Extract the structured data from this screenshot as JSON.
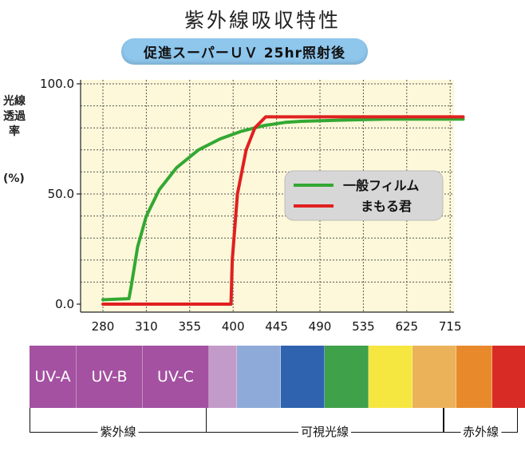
{
  "title": "紫外線吸収特性",
  "subtitle": "促進スーパーＵＶ 25hr照射後",
  "chart_data": {
    "type": "line",
    "title": "紫外線吸収特性",
    "subtitle": "促進スーパーＵＶ 25hr照射後",
    "ylabel": "光線透過率",
    "ylabel_unit": "(%)",
    "xlabel": "",
    "categories": [
      "280",
      "310",
      "355",
      "400",
      "445",
      "490",
      "535",
      "625",
      "715"
    ],
    "y_ticks": [
      100.0,
      50.0,
      0.0
    ],
    "y_tick_labels": [
      "100.0",
      "50.0",
      "0.0"
    ],
    "ylim": [
      0,
      100
    ],
    "grid": true,
    "legend_position": "right-middle",
    "series": [
      {
        "name": "一般フィルム",
        "color": "#33a833",
        "points": [
          [
            0,
            2
          ],
          [
            0.6,
            2.5
          ],
          [
            0.65,
            8
          ],
          [
            0.8,
            26
          ],
          [
            1.0,
            40
          ],
          [
            1.3,
            52
          ],
          [
            1.7,
            62
          ],
          [
            2.2,
            70
          ],
          [
            2.7,
            75
          ],
          [
            3.2,
            78.5
          ],
          [
            3.7,
            81
          ],
          [
            4.2,
            82.5
          ],
          [
            4.6,
            83
          ],
          [
            5.5,
            83.5
          ],
          [
            6.5,
            84
          ],
          [
            7.5,
            84
          ],
          [
            8.3,
            84
          ]
        ]
      },
      {
        "name": "まもる君",
        "color": "#e02020",
        "points": [
          [
            0,
            0
          ],
          [
            2.95,
            0
          ],
          [
            2.98,
            20
          ],
          [
            3.1,
            50
          ],
          [
            3.3,
            70
          ],
          [
            3.5,
            80
          ],
          [
            3.75,
            85
          ],
          [
            4.1,
            85
          ],
          [
            8.3,
            85
          ]
        ]
      }
    ]
  },
  "spectrum": {
    "bands": [
      {
        "label": "UV-A",
        "color": "#a451a1"
      },
      {
        "label": "UV-B",
        "color": "#a451a1"
      },
      {
        "label": "UV-C",
        "color": "#a451a1"
      },
      {
        "label": "",
        "color": "#c39bc9"
      },
      {
        "label": "",
        "color": "#8eaad8"
      },
      {
        "label": "",
        "color": "#2f63b0"
      },
      {
        "label": "",
        "color": "#3fa14a"
      },
      {
        "label": "",
        "color": "#f5e640"
      },
      {
        "label": "",
        "color": "#ecb25a"
      },
      {
        "label": "",
        "color": "#e88a2c"
      },
      {
        "label": "",
        "color": "#d92b25"
      }
    ],
    "regions": [
      {
        "label": "紫外線"
      },
      {
        "label": "可視光線"
      },
      {
        "label": "赤外線"
      }
    ]
  }
}
